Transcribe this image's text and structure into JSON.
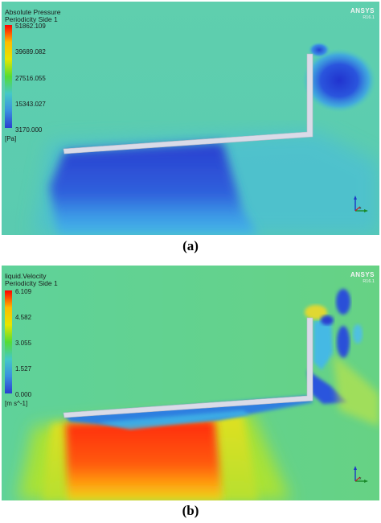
{
  "panels": [
    {
      "variable": "Absolute Pressure",
      "location": "Periodicity Side 1",
      "ticks": [
        "51862.109",
        "39689.082",
        "27516.055",
        "15343.027",
        "3170.000"
      ],
      "unit": "[Pa]",
      "caption": "(a)"
    },
    {
      "variable": "liquid.Velocity",
      "location": "Periodicity Side 1",
      "ticks": [
        "6.109",
        "4.582",
        "3.055",
        "1.527",
        "0.000"
      ],
      "unit": "[m s^-1]",
      "caption": "(b)"
    }
  ],
  "logo": {
    "brand": "ANSYS",
    "version": "R16.1"
  },
  "colormap": [
    "#ff0000",
    "#ffbb00",
    "#e6e600",
    "#55dd33",
    "#44c8c8",
    "#3a8fe0",
    "#2a3fd0"
  ],
  "icons": {
    "axis_triad": "xyz-axis-triad-icon"
  }
}
